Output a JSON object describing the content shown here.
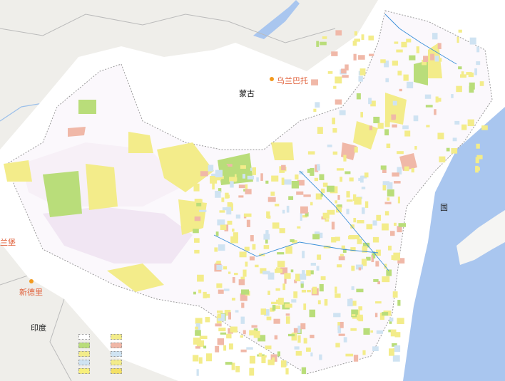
{
  "map": {
    "colors": {
      "land": "#efeeea",
      "sea": "#a9c6ef",
      "boundary": "#b5b5b5",
      "overlay": "#ffffff",
      "yellow": "#f3ec8a",
      "green": "#b9dd7a",
      "pink": "#f0b8a8",
      "lightblue": "#cfe3f2",
      "lilac": "#f1e6f3",
      "river": "#3a8fd8"
    },
    "labels": [
      {
        "id": "mongolia",
        "text": "蒙古",
        "kind": "country"
      },
      {
        "id": "ulaanbaatar",
        "text": "乌兰巴托",
        "kind": "city"
      },
      {
        "id": "korea",
        "text": "国",
        "kind": "country"
      },
      {
        "id": "lahore",
        "text": "兰堡",
        "kind": "city"
      },
      {
        "id": "new-delhi",
        "text": "新德里",
        "kind": "city"
      },
      {
        "id": "india",
        "text": "印度",
        "kind": "country"
      }
    ],
    "legend": {
      "title": "",
      "swatch_colors": [
        "#ffffff",
        "#b9dd7a",
        "#f3ec8a",
        "#cfe3f2",
        "#f7ef7a",
        "#f3ec8a",
        "#f0b8a8",
        "#cfe3f2",
        "#f3ec8a",
        "#f3e066"
      ]
    }
  }
}
